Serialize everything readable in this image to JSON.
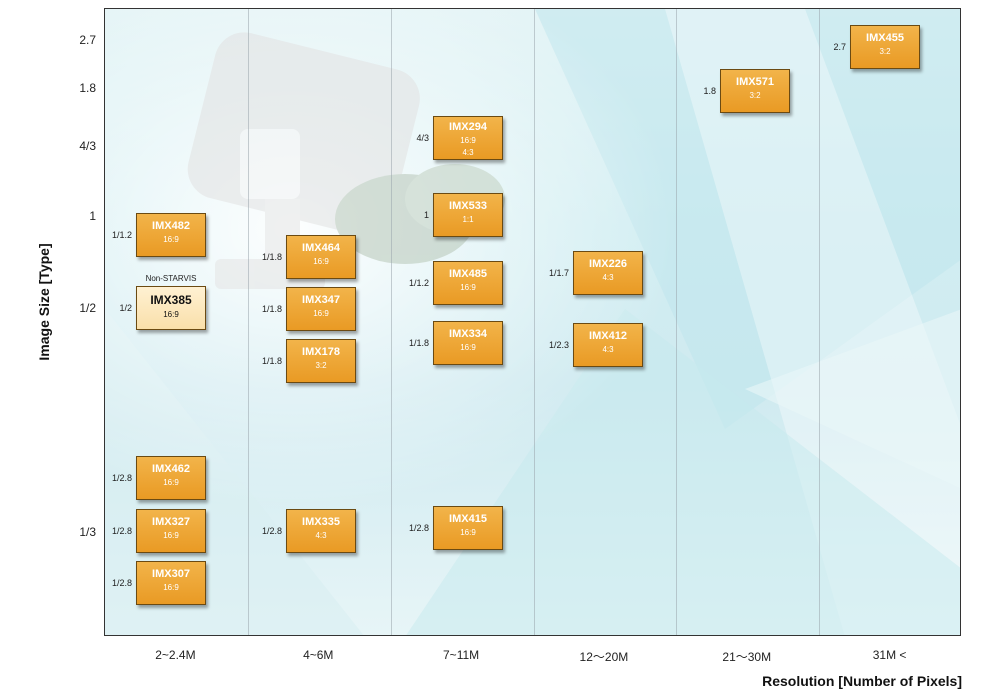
{
  "chart_data": {
    "type": "table",
    "title": "",
    "xlabel": "Resolution  [Number of Pixels]",
    "ylabel": "Image Size [Type]",
    "x_categories": [
      "2~2.4M",
      "4~6M",
      "7~11M",
      "12〜20M",
      "21〜30M",
      "31M <"
    ],
    "y_ticks": [
      "2.7",
      "1.8",
      "4/3",
      "1",
      "1/2",
      "1/3"
    ],
    "grid": "vertical",
    "sensors": [
      {
        "name": "IMX482",
        "size": "1/1.2",
        "ratio": [
          "16:9"
        ],
        "resolution": "2~2.4M"
      },
      {
        "name": "IMX385",
        "size": "1/2",
        "ratio": [
          "16:9"
        ],
        "resolution": "2~2.4M",
        "note": "Non-STARVIS",
        "highlight": true
      },
      {
        "name": "IMX462",
        "size": "1/2.8",
        "ratio": [
          "16:9"
        ],
        "resolution": "2~2.4M"
      },
      {
        "name": "IMX327",
        "size": "1/2.8",
        "ratio": [
          "16:9"
        ],
        "resolution": "2~2.4M"
      },
      {
        "name": "IMX307",
        "size": "1/2.8",
        "ratio": [
          "16:9"
        ],
        "resolution": "2~2.4M"
      },
      {
        "name": "IMX464",
        "size": "1/1.8",
        "ratio": [
          "16:9"
        ],
        "resolution": "4~6M"
      },
      {
        "name": "IMX347",
        "size": "1/1.8",
        "ratio": [
          "16:9"
        ],
        "resolution": "4~6M"
      },
      {
        "name": "IMX178",
        "size": "1/1.8",
        "ratio": [
          "3:2"
        ],
        "resolution": "4~6M"
      },
      {
        "name": "IMX335",
        "size": "1/2.8",
        "ratio": [
          "4:3"
        ],
        "resolution": "4~6M"
      },
      {
        "name": "IMX294",
        "size": "4/3",
        "ratio": [
          "16:9",
          "4:3"
        ],
        "resolution": "7~11M"
      },
      {
        "name": "IMX533",
        "size": "1",
        "ratio": [
          "1:1"
        ],
        "resolution": "7~11M"
      },
      {
        "name": "IMX485",
        "size": "1/1.2",
        "ratio": [
          "16:9"
        ],
        "resolution": "7~11M"
      },
      {
        "name": "IMX334",
        "size": "1/1.8",
        "ratio": [
          "16:9"
        ],
        "resolution": "7~11M"
      },
      {
        "name": "IMX415",
        "size": "1/2.8",
        "ratio": [
          "16:9"
        ],
        "resolution": "7~11M"
      },
      {
        "name": "IMX226",
        "size": "1/1.7",
        "ratio": [
          "4:3"
        ],
        "resolution": "12〜20M"
      },
      {
        "name": "IMX412",
        "size": "1/2.3",
        "ratio": [
          "4:3"
        ],
        "resolution": "12〜20M"
      },
      {
        "name": "IMX571",
        "size": "1.8",
        "ratio": [
          "3:2"
        ],
        "resolution": "21〜30M"
      },
      {
        "name": "IMX455",
        "size": "2.7",
        "ratio": [
          "3:2"
        ],
        "resolution": "31M <"
      }
    ]
  }
}
